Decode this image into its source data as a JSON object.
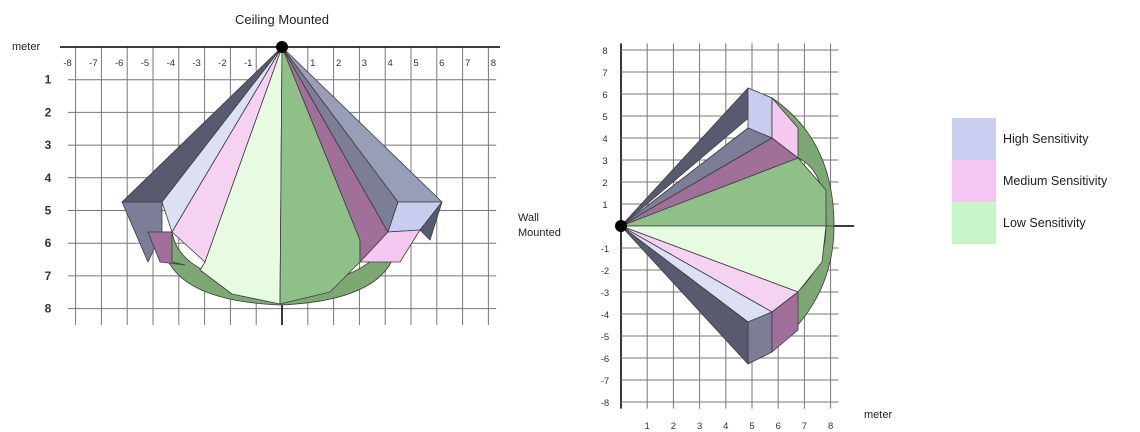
{
  "ceiling": {
    "title": "Ceiling Mounted",
    "unit_label": "meter",
    "x_ticks": [
      "-8",
      "-7",
      "-6",
      "-5",
      "-4",
      "-3",
      "-2",
      "-1",
      "1",
      "2",
      "3",
      "4",
      "5",
      "6",
      "7",
      "8"
    ],
    "y_ticks": [
      "1",
      "2",
      "3",
      "4",
      "5",
      "6",
      "7",
      "8"
    ]
  },
  "wall": {
    "title": "Wall Mounted",
    "title_line1": "Wall",
    "title_line2": "Mounted",
    "unit_label": "meter",
    "y_ticks": [
      "8",
      "7",
      "6",
      "5",
      "4",
      "3",
      "2",
      "1",
      "-1",
      "-2",
      "-3",
      "-4",
      "-5",
      "-6",
      "-7",
      "-8"
    ],
    "x_ticks": [
      "1",
      "2",
      "3",
      "4",
      "5",
      "6",
      "7",
      "8"
    ]
  },
  "legend": [
    {
      "label": "High Sensitivity",
      "color": "#c9cdf0"
    },
    {
      "label": "Medium Sensitivity",
      "color": "#f6c6f2"
    },
    {
      "label": "Low Sensitivity",
      "color": "#c5f5c8"
    }
  ],
  "colors": {
    "high_face": "#c8ccee",
    "high_shadow": "#7b7e96",
    "high_dark": "#585b70",
    "medium_face": "#f4c8f0",
    "medium_shadow": "#a0709a",
    "low_face": "#e6fbe2",
    "low_shadow": "#7da874",
    "mount_point": "#000000"
  }
}
